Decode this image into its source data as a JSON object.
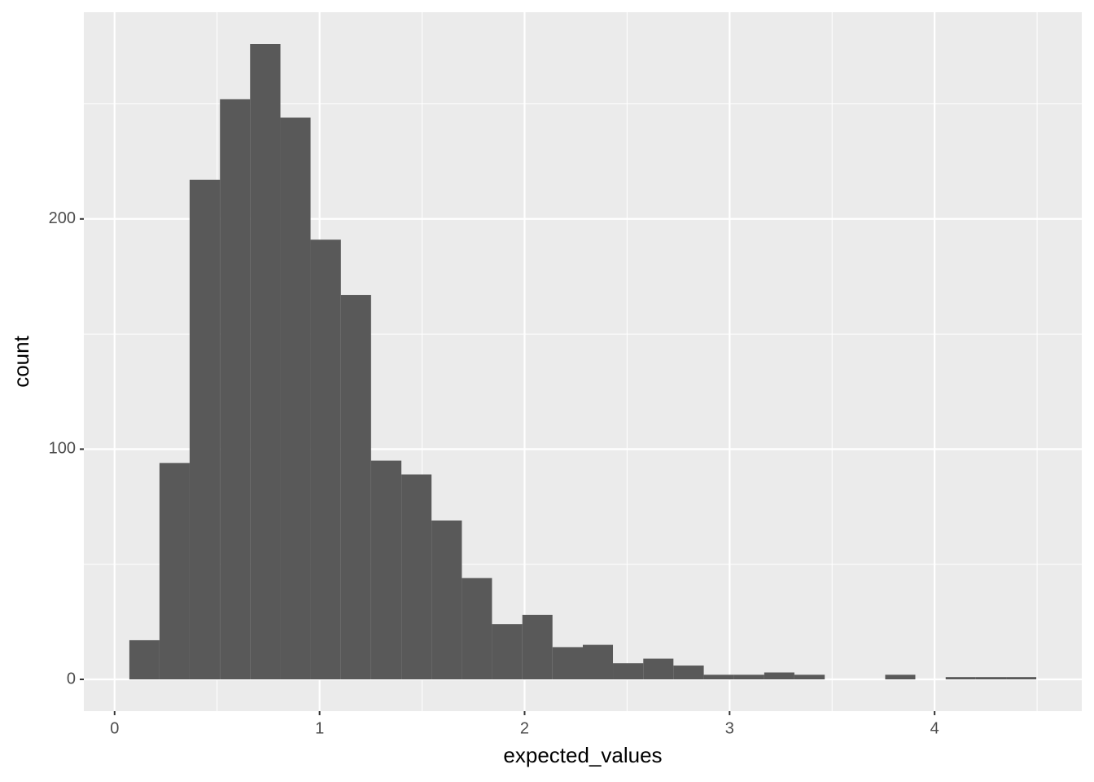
{
  "chart_data": {
    "type": "histogram",
    "x_label": "expected_values",
    "y_label": "count",
    "bins": [
      0.072,
      0.219,
      0.366,
      0.514,
      0.661,
      0.809,
      0.956,
      1.104,
      1.251,
      1.399,
      1.546,
      1.694,
      1.841,
      1.989,
      2.136,
      2.284,
      2.431,
      2.579,
      2.726,
      2.874,
      3.021,
      3.169,
      3.316,
      3.464,
      3.611,
      3.759,
      3.906,
      4.054,
      4.201,
      4.349,
      4.496
    ],
    "values": [
      17,
      94,
      217,
      252,
      276,
      244,
      191,
      167,
      95,
      89,
      69,
      44,
      24,
      28,
      14,
      15,
      7,
      9,
      6,
      2,
      2,
      3,
      2,
      0,
      0,
      2,
      0,
      1,
      1,
      1
    ],
    "color": "#595959",
    "xlim": [
      -0.15,
      4.718
    ],
    "ylim": [
      -13.8,
      289.8
    ],
    "xticks": [
      0,
      1,
      2,
      3,
      4
    ],
    "yticks": [
      0,
      100,
      200
    ],
    "grid": true
  }
}
